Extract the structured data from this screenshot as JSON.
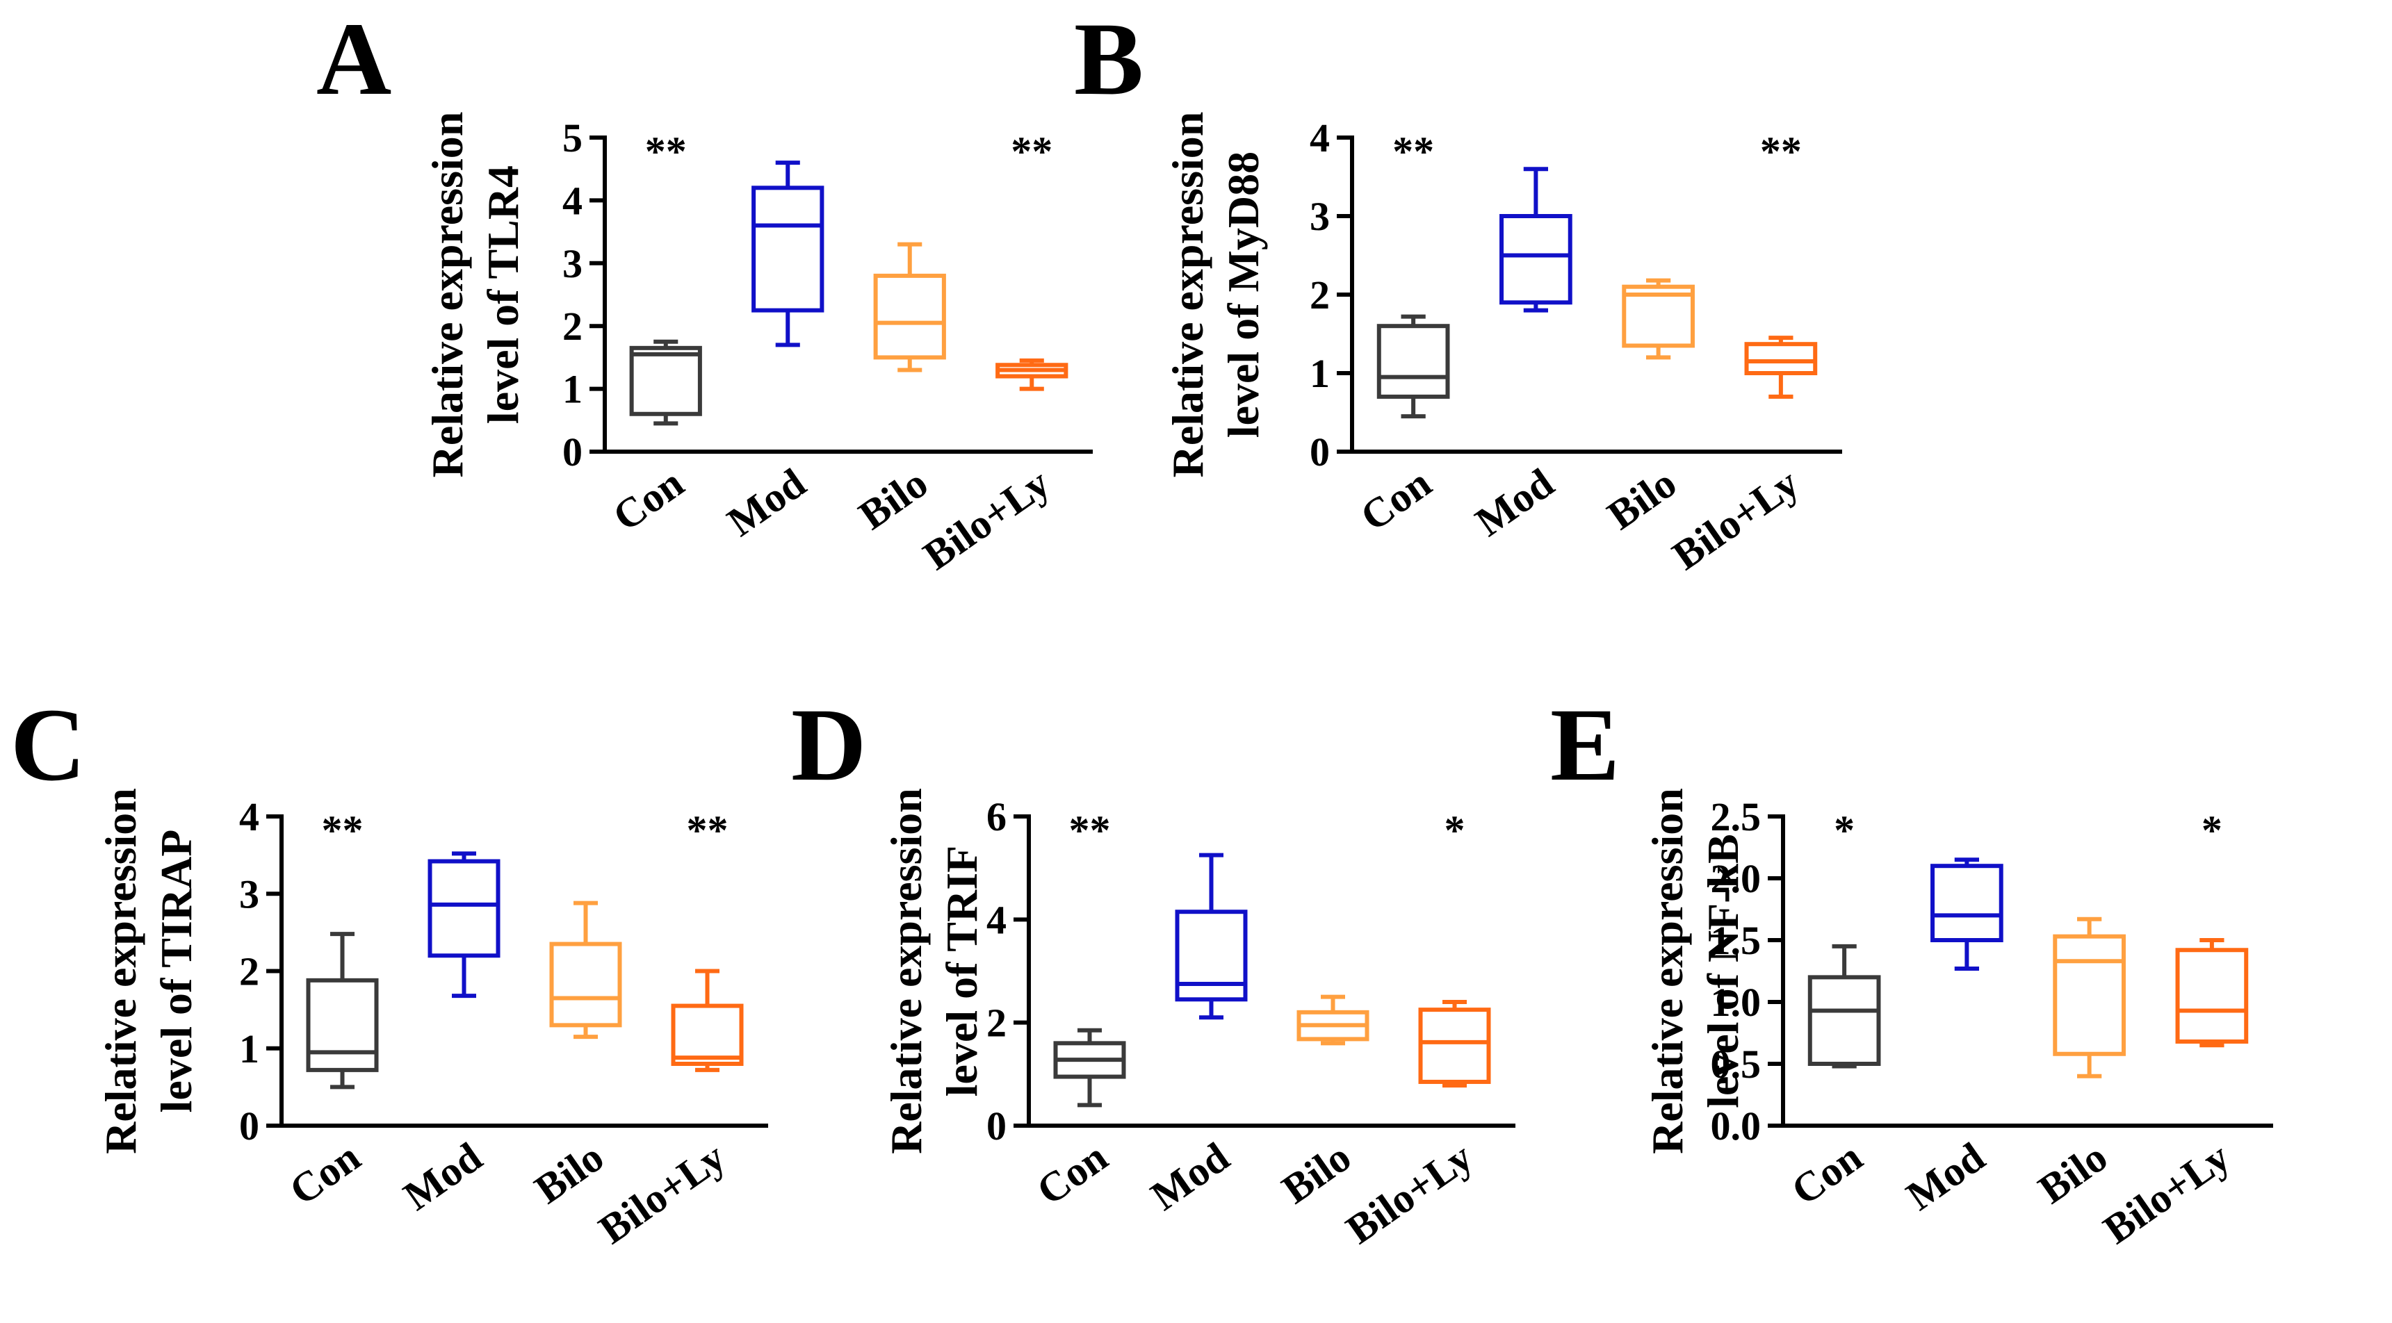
{
  "chart_data": [
    {
      "type": "box",
      "panel": "A",
      "ylabel_lines": [
        "Relative expression",
        "level of TLR4"
      ],
      "ylim": [
        0,
        5
      ],
      "yticks": [
        "0",
        "1",
        "2",
        "3",
        "4",
        "5"
      ],
      "categories": [
        "Con",
        "Mod",
        "Bilo",
        "Bilo+Ly"
      ],
      "colors": [
        "#3a3a3a",
        "#1010c8",
        "#ffa040",
        "#ff6a14"
      ],
      "boxes": [
        {
          "min": 0.45,
          "q1": 0.6,
          "median": 1.55,
          "q3": 1.65,
          "max": 1.75
        },
        {
          "min": 1.7,
          "q1": 2.25,
          "median": 3.6,
          "q3": 4.2,
          "max": 4.6
        },
        {
          "min": 1.3,
          "q1": 1.5,
          "median": 2.05,
          "q3": 2.8,
          "max": 3.3
        },
        {
          "min": 1.0,
          "q1": 1.2,
          "median": 1.3,
          "q3": 1.38,
          "max": 1.45
        }
      ],
      "significance": [
        "**",
        "",
        "",
        "**"
      ]
    },
    {
      "type": "box",
      "panel": "B",
      "ylabel_lines": [
        "Relative expression",
        "level of MyD88"
      ],
      "ylim": [
        0,
        4
      ],
      "yticks": [
        "0",
        "1",
        "2",
        "3",
        "4"
      ],
      "categories": [
        "Con",
        "Mod",
        "Bilo",
        "Bilo+Ly"
      ],
      "colors": [
        "#3a3a3a",
        "#1010c8",
        "#ffa040",
        "#ff6a14"
      ],
      "boxes": [
        {
          "min": 0.45,
          "q1": 0.7,
          "median": 0.95,
          "q3": 1.6,
          "max": 1.72
        },
        {
          "min": 1.8,
          "q1": 1.9,
          "median": 2.5,
          "q3": 3.0,
          "max": 3.6
        },
        {
          "min": 1.2,
          "q1": 1.35,
          "median": 2.0,
          "q3": 2.1,
          "max": 2.18
        },
        {
          "min": 0.7,
          "q1": 1.0,
          "median": 1.15,
          "q3": 1.37,
          "max": 1.45
        }
      ],
      "significance": [
        "**",
        "",
        "",
        "**"
      ]
    },
    {
      "type": "box",
      "panel": "C",
      "ylabel_lines": [
        "Relative expression",
        "level of TIRAP"
      ],
      "ylim": [
        0,
        4
      ],
      "yticks": [
        "0",
        "1",
        "2",
        "3",
        "4"
      ],
      "categories": [
        "Con",
        "Mod",
        "Bilo",
        "Bilo+Ly"
      ],
      "colors": [
        "#3a3a3a",
        "#1010c8",
        "#ffa040",
        "#ff6a14"
      ],
      "boxes": [
        {
          "min": 0.5,
          "q1": 0.72,
          "median": 0.95,
          "q3": 1.88,
          "max": 2.48
        },
        {
          "min": 1.68,
          "q1": 2.2,
          "median": 2.86,
          "q3": 3.42,
          "max": 3.52
        },
        {
          "min": 1.15,
          "q1": 1.3,
          "median": 1.65,
          "q3": 2.35,
          "max": 2.88
        },
        {
          "min": 0.72,
          "q1": 0.8,
          "median": 0.88,
          "q3": 1.55,
          "max": 2.0
        }
      ],
      "significance": [
        "**",
        "",
        "",
        "**"
      ]
    },
    {
      "type": "box",
      "panel": "D",
      "ylabel_lines": [
        "Relative expression",
        "level of TRIF"
      ],
      "ylim": [
        0,
        6
      ],
      "yticks": [
        "0",
        "2",
        "4",
        "6"
      ],
      "categories": [
        "Con",
        "Mod",
        "Bilo",
        "Bilo+Ly"
      ],
      "colors": [
        "#3a3a3a",
        "#1010c8",
        "#ffa040",
        "#ff6a14"
      ],
      "boxes": [
        {
          "min": 0.4,
          "q1": 0.95,
          "median": 1.28,
          "q3": 1.6,
          "max": 1.85
        },
        {
          "min": 2.1,
          "q1": 2.45,
          "median": 2.75,
          "q3": 4.15,
          "max": 5.25
        },
        {
          "min": 1.6,
          "q1": 1.68,
          "median": 1.95,
          "q3": 2.2,
          "max": 2.5
        },
        {
          "min": 0.78,
          "q1": 0.85,
          "median": 1.62,
          "q3": 2.25,
          "max": 2.4
        }
      ],
      "significance": [
        "**",
        "",
        "",
        "*"
      ]
    },
    {
      "type": "box",
      "panel": "E",
      "ylabel_lines": [
        "Relative expression",
        "level of NF-kB"
      ],
      "ylim": [
        0,
        2.5
      ],
      "yticks": [
        "0.0",
        "0.5",
        "1.0",
        "1.5",
        "2.0",
        "2.5"
      ],
      "categories": [
        "Con",
        "Mod",
        "Bilo",
        "Bilo+Ly"
      ],
      "colors": [
        "#3a3a3a",
        "#1010c8",
        "#ffa040",
        "#ff6a14"
      ],
      "boxes": [
        {
          "min": 0.48,
          "q1": 0.5,
          "median": 0.93,
          "q3": 1.2,
          "max": 1.45
        },
        {
          "min": 1.27,
          "q1": 1.5,
          "median": 1.7,
          "q3": 2.1,
          "max": 2.15
        },
        {
          "min": 0.4,
          "q1": 0.58,
          "median": 1.33,
          "q3": 1.53,
          "max": 1.67
        },
        {
          "min": 0.65,
          "q1": 0.68,
          "median": 0.93,
          "q3": 1.42,
          "max": 1.5
        }
      ],
      "significance": [
        "*",
        "",
        "",
        "*"
      ]
    }
  ]
}
